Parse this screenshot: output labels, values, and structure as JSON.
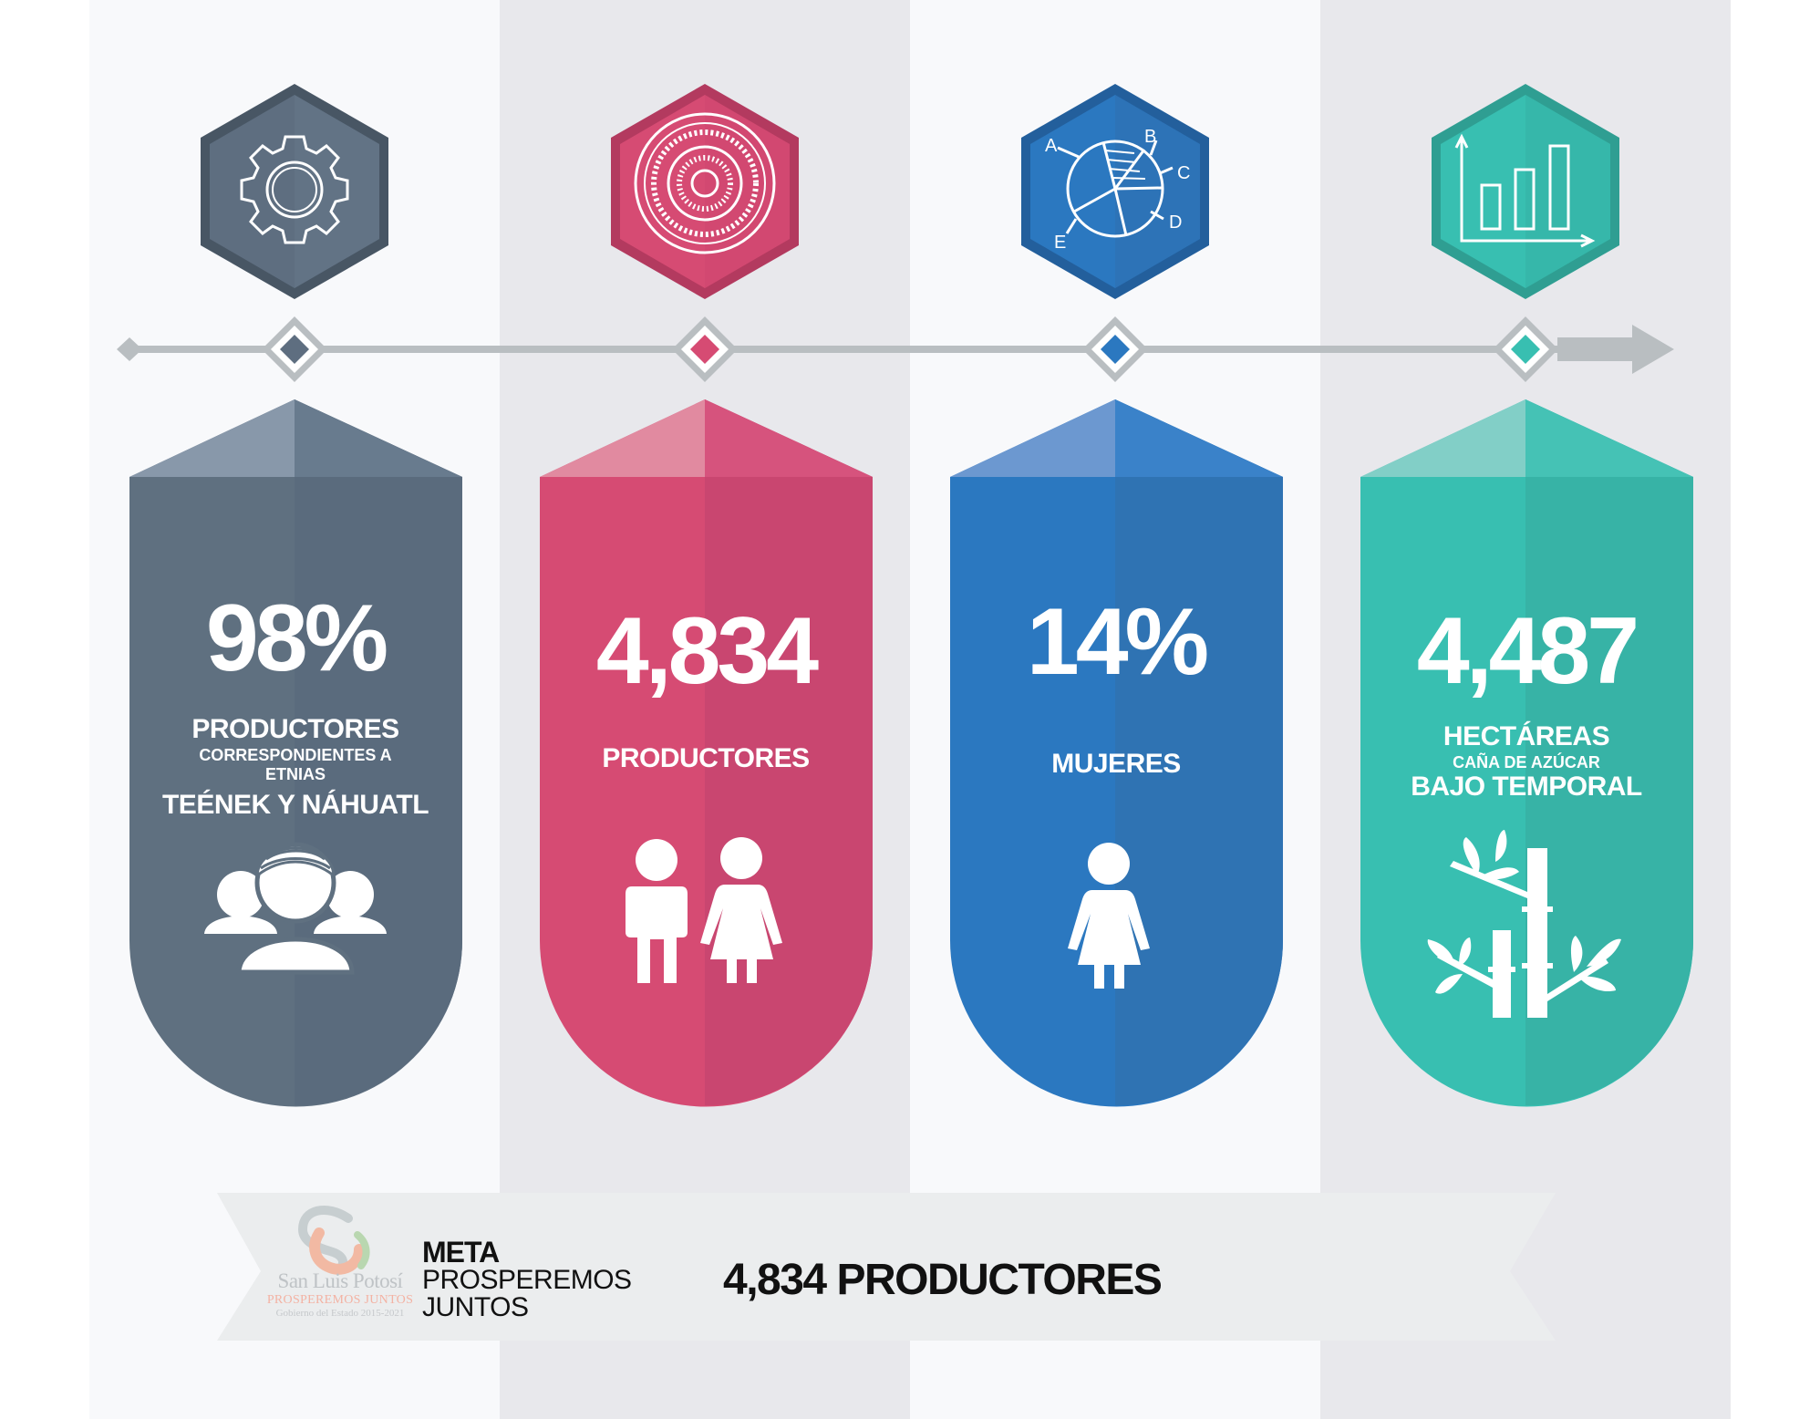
{
  "background": {
    "light": "#f8f9fb",
    "dark": "#e8e8ec"
  },
  "timeline": {
    "line_color": "#b9bec1"
  },
  "cards": [
    {
      "id": "etnias",
      "color": "#5e6e80",
      "color_dark": "#5a6b7d",
      "color_light": "#8898aa",
      "icon": "gear-icon",
      "person_icon": "group-icon",
      "value": "98%",
      "line1": "PRODUCTORES",
      "line2": "CORRESPONDIENTES A",
      "line3": "ETNIAS",
      "line4": "TEÉNEK Y NÁHUATL"
    },
    {
      "id": "productores",
      "color": "#d64b73",
      "color_dark": "#c94670",
      "color_light": "#e18aa0",
      "icon": "target-icon",
      "person_icon": "man-woman-icon",
      "value": "4,834",
      "line1": "PRODUCTORES"
    },
    {
      "id": "mujeres",
      "color": "#2b78c0",
      "color_dark": "#2f73b3",
      "color_light": "#6c98d0",
      "icon": "pie-chart-icon",
      "person_icon": "woman-icon",
      "value": "14%",
      "line1": "MUJERES"
    },
    {
      "id": "hectareas",
      "color": "#38bfb1",
      "color_dark": "#37b3a6",
      "color_light": "#82cfc7",
      "icon": "bar-chart-icon",
      "person_icon": "bamboo-icon",
      "value": "4,487",
      "line1": "HECTÁREAS",
      "line2": "CAÑA DE AZÚCAR",
      "line3": "BAJO TEMPORAL"
    }
  ],
  "pie_letters": [
    "A",
    "B",
    "C",
    "D",
    "E"
  ],
  "footer": {
    "logo_line1": "San Luis Potosí",
    "logo_line2": "PROSPEREMOS JUNTOS",
    "logo_line3": "Gobierno del Estado 2015-2021",
    "meta_title": "META",
    "meta_line2": "PROSPEREMOS",
    "meta_line3": "JUNTOS",
    "total": "4,834 PRODUCTORES"
  }
}
